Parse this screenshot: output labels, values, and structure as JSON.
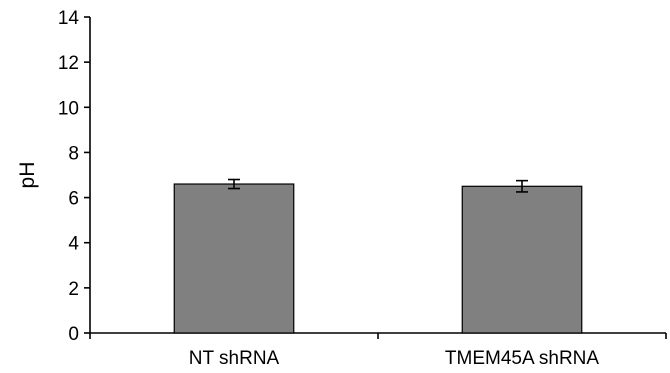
{
  "chart_data": {
    "type": "bar",
    "title": "",
    "xlabel": "",
    "ylabel": "pH",
    "categories": [
      "NT shRNA",
      "TMEM45A shRNA"
    ],
    "values": [
      6.6,
      6.5
    ],
    "errors": [
      0.2,
      0.25
    ],
    "ylim": [
      0,
      14
    ],
    "yticks": [
      0,
      2,
      4,
      6,
      8,
      10,
      12,
      14
    ],
    "grid": false,
    "legend": "none",
    "bar_color": "#808080"
  }
}
